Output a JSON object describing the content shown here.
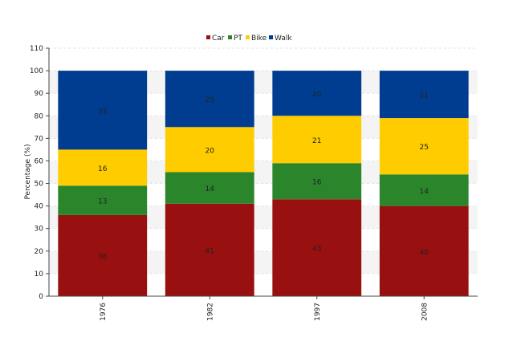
{
  "chart_data": {
    "type": "bar",
    "stacked": true,
    "categories": [
      "1976",
      "1982",
      "1997",
      "2008"
    ],
    "series": [
      {
        "name": "Car",
        "color": "#981010",
        "values": [
          36,
          41,
          43,
          40
        ]
      },
      {
        "name": "PT",
        "color": "#2A852B",
        "values": [
          13,
          14,
          16,
          14
        ]
      },
      {
        "name": "Bike",
        "color": "#FFCC00",
        "values": [
          16,
          20,
          21,
          25
        ]
      },
      {
        "name": "Walk",
        "color": "#003D91",
        "values": [
          35,
          25,
          20,
          21
        ]
      }
    ],
    "ylabel": "Percentage (%)",
    "xlabel": "",
    "ylim": [
      0,
      110
    ],
    "yticks": [
      0,
      10,
      20,
      30,
      40,
      50,
      60,
      70,
      80,
      90,
      100,
      110
    ],
    "legend_position": "top-center",
    "grid": "horizontal dashed with alternating bands"
  }
}
